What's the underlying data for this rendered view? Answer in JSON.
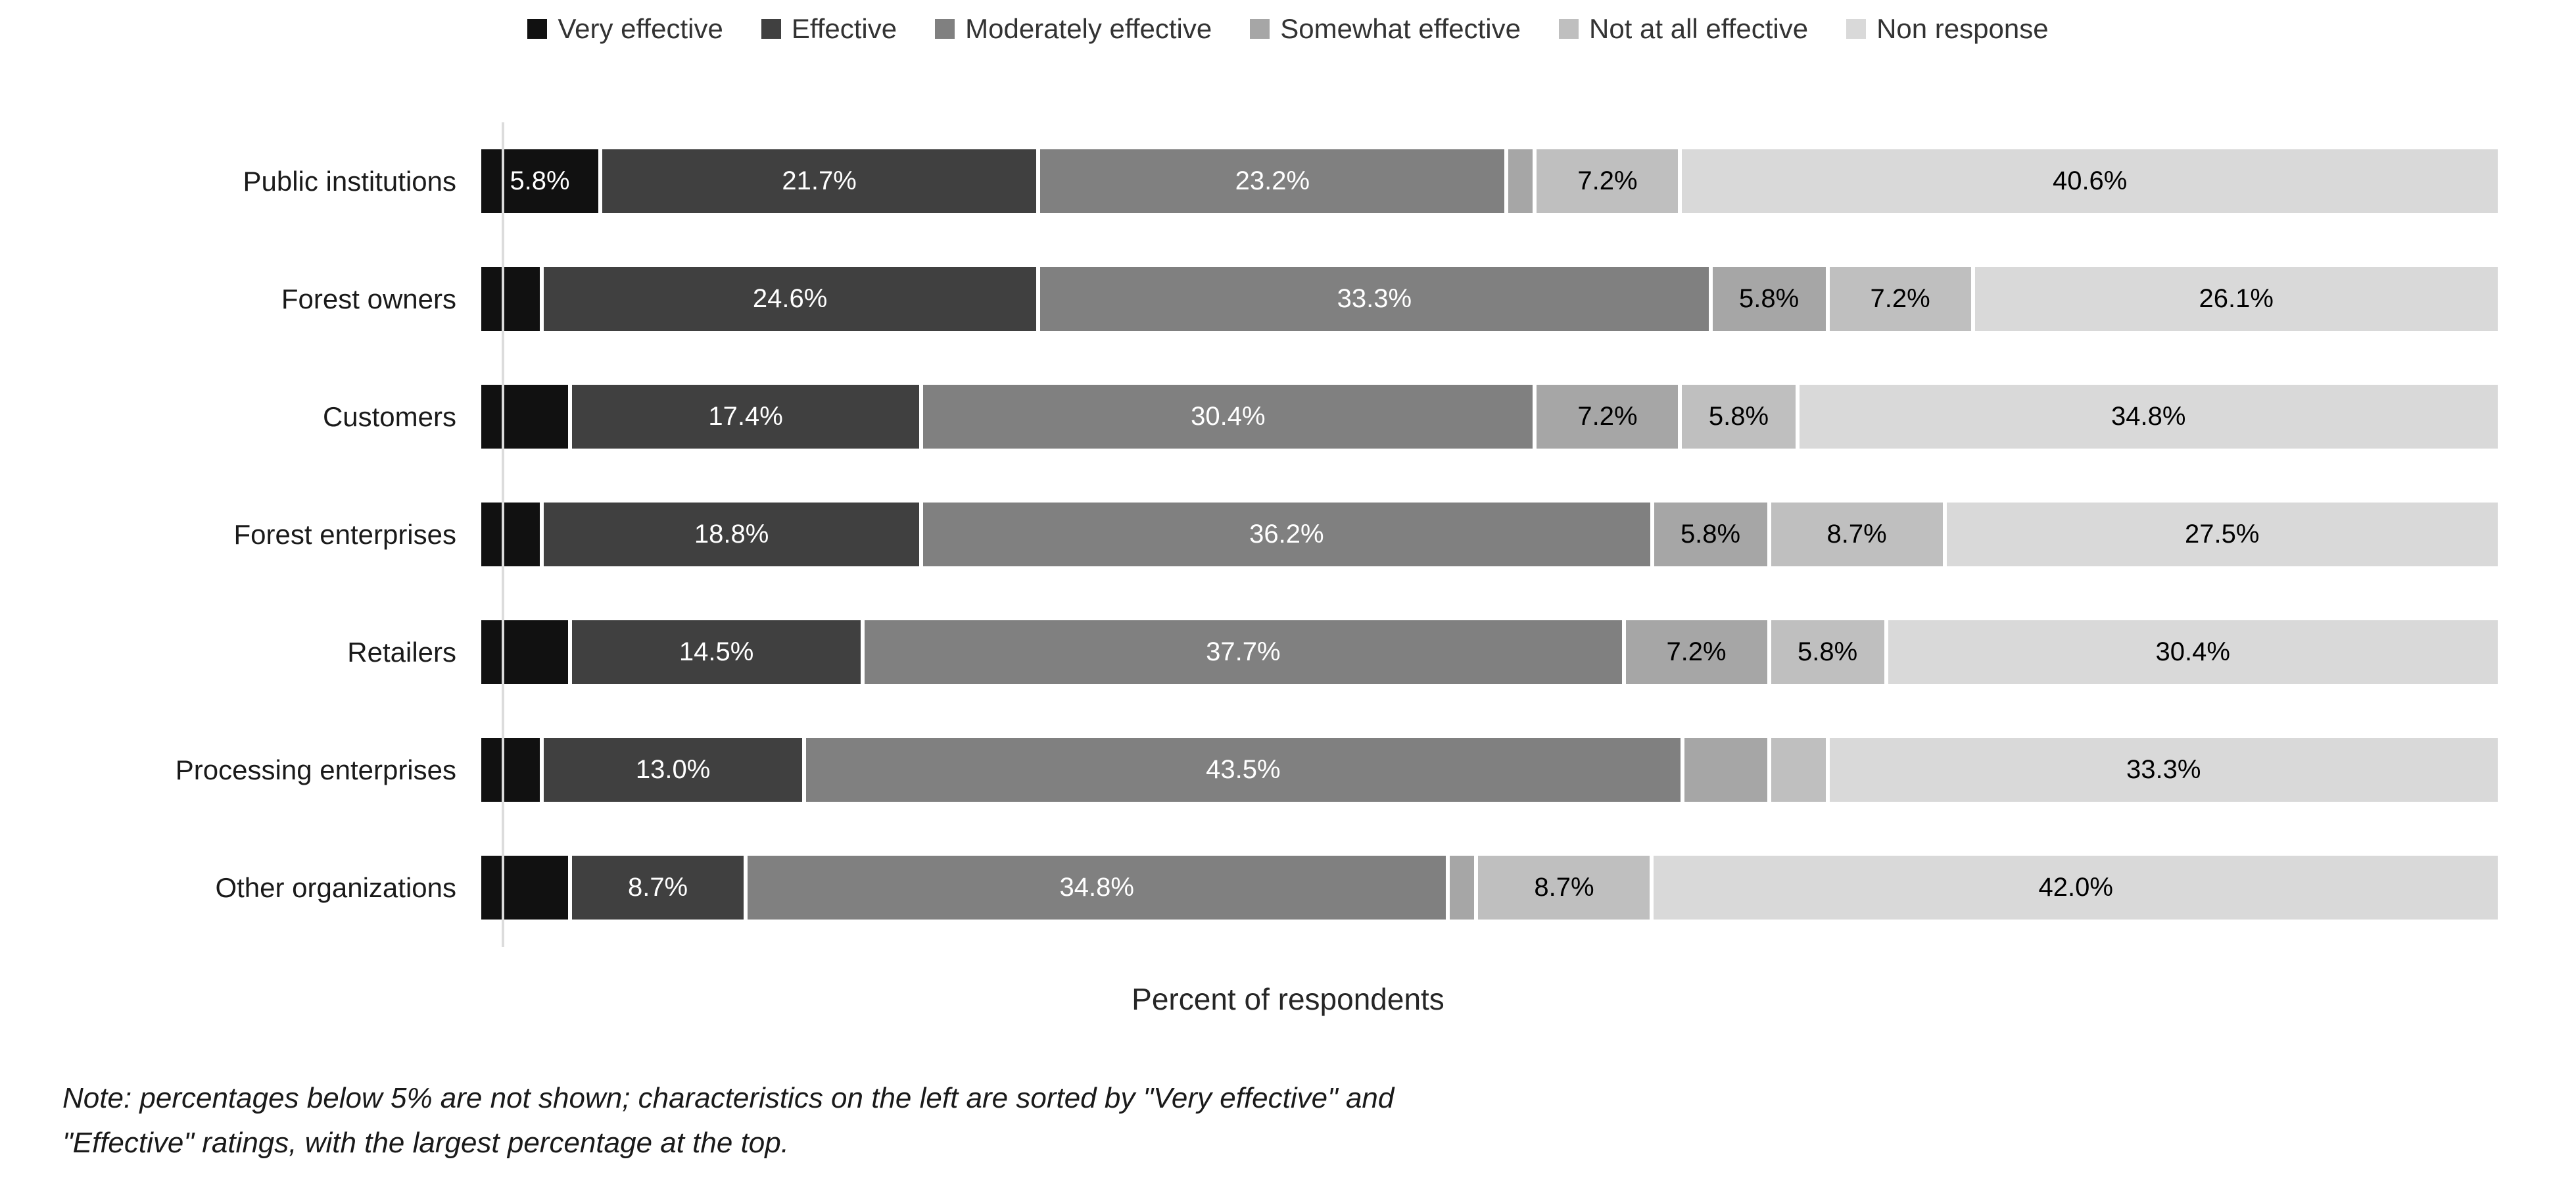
{
  "chart_data": {
    "type": "bar",
    "orientation": "horizontal-stacked",
    "title": "",
    "xlabel": "Percent of respondents",
    "ylabel": "",
    "xlim": [
      0,
      100
    ],
    "grid": false,
    "legend_position": "top",
    "label_threshold_pct": 5,
    "categories": [
      "Public institutions",
      "Forest owners",
      "Customers",
      "Forest enterprises",
      "Retailers",
      "Processing enterprises",
      "Other organizations"
    ],
    "series": [
      {
        "name": "Very effective",
        "color": "#111111",
        "label_color": "#ffffff",
        "values": [
          5.8,
          2.9,
          4.3,
          2.9,
          4.3,
          2.9,
          4.3
        ]
      },
      {
        "name": "Effective",
        "color": "#404040",
        "label_color": "#ffffff",
        "values": [
          21.7,
          24.6,
          17.4,
          18.8,
          14.5,
          13.0,
          8.7
        ]
      },
      {
        "name": "Moderately effective",
        "color": "#808080",
        "label_color": "#ffffff",
        "values": [
          23.2,
          33.3,
          30.4,
          36.2,
          37.7,
          43.5,
          34.8
        ]
      },
      {
        "name": "Somewhat effective",
        "color": "#a6a6a6",
        "label_color": "#000000",
        "values": [
          1.4,
          5.8,
          7.2,
          5.8,
          7.2,
          4.3,
          1.4
        ]
      },
      {
        "name": "Not at all effective",
        "color": "#bfbfbf",
        "label_color": "#000000",
        "values": [
          7.2,
          7.2,
          5.8,
          8.7,
          5.8,
          2.9,
          8.7
        ]
      },
      {
        "name": "Non response",
        "color": "#d9d9d9",
        "label_color": "#000000",
        "values": [
          40.6,
          26.1,
          34.8,
          27.5,
          30.4,
          33.3,
          42.0
        ]
      }
    ],
    "note_line1": "Note: percentages below 5% are not shown; characteristics on the left are sorted by \"Very effective\" and",
    "note_line2": "\"Effective\" ratings, with the largest percentage at the top."
  }
}
